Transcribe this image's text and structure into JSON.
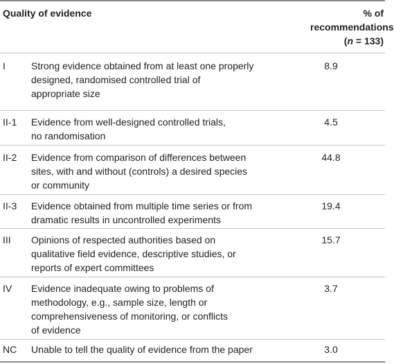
{
  "header": {
    "quality_label": "Quality of evidence",
    "pct_line1": "% of",
    "pct_line2": "recommendations",
    "pct_open": "(",
    "pct_n": "n",
    "pct_rest": " = 133)"
  },
  "rows": [
    {
      "code": "I",
      "desc": [
        "Strong evidence obtained from at least one properly",
        "designed, randomised controlled trial of",
        "appropriate size"
      ],
      "value": "8.9"
    },
    {
      "code": "II-1",
      "desc": [
        "Evidence from well-designed controlled trials,",
        "no randomisation"
      ],
      "value": "4.5"
    },
    {
      "code": "II-2",
      "desc": [
        "Evidence from comparison of differences between",
        "sites, with and without (controls) a desired species",
        "or community"
      ],
      "value": "44.8"
    },
    {
      "code": "II-3",
      "desc": [
        "Evidence obtained from multiple time series or from",
        "dramatic results in uncontrolled experiments"
      ],
      "value": "19.4"
    },
    {
      "code": "III",
      "desc": [
        "Opinions of respected authorities based on",
        "qualitative field evidence, descriptive studies, or",
        "reports of expert committees"
      ],
      "value": "15.7"
    },
    {
      "code": "IV",
      "desc": [
        "Evidence inadequate owing to problems of",
        "methodology, e.g., sample size, length or",
        "comprehensiveness of monitoring, or conflicts",
        "of evidence"
      ],
      "value": "3.7"
    },
    {
      "code": "NC",
      "desc": [
        "Unable to tell the quality of evidence from the paper"
      ],
      "value": "3.0"
    }
  ]
}
